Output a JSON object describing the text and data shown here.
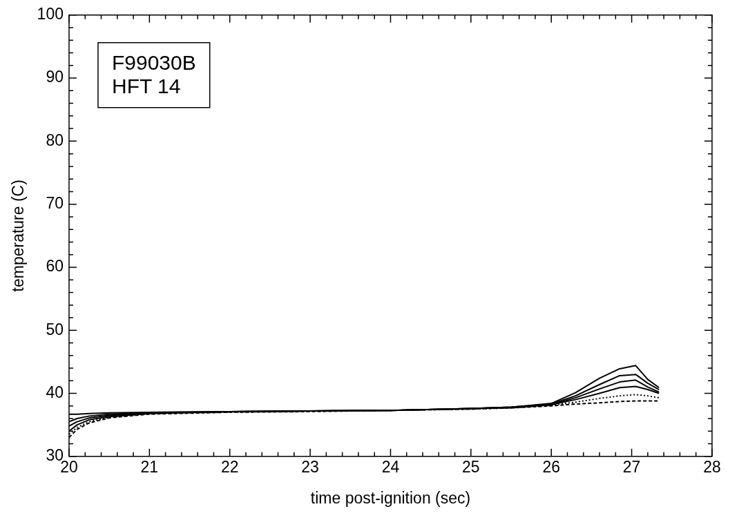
{
  "chart_data": {
    "type": "line",
    "xlabel": "time post-ignition (sec)",
    "ylabel": "temperature (C)",
    "annotations": [
      "F99030B",
      "HFT 14"
    ],
    "x": [
      20,
      20.1,
      20.25,
      20.5,
      21,
      22,
      23,
      24,
      25,
      25.5,
      26,
      26.3,
      26.6,
      26.85,
      27.05,
      27.2,
      27.34
    ],
    "series": [
      {
        "color": "#000000",
        "line_style": "solid",
        "values": [
          36.7,
          36.7,
          36.8,
          36.9,
          37.0,
          37.1,
          37.2,
          37.3,
          37.6,
          37.8,
          38.4,
          40.1,
          42.4,
          43.9,
          44.4,
          42.2,
          40.9
        ]
      },
      {
        "color": "#000000",
        "line_style": "solid",
        "values": [
          35.5,
          36.0,
          36.4,
          36.7,
          36.9,
          37.1,
          37.2,
          37.3,
          37.6,
          37.8,
          38.3,
          39.6,
          41.4,
          42.8,
          43.0,
          41.6,
          40.6
        ]
      },
      {
        "color": "#000000",
        "line_style": "solid",
        "values": [
          34.8,
          35.5,
          36.1,
          36.5,
          36.9,
          37.1,
          37.2,
          37.3,
          37.6,
          37.8,
          38.2,
          39.3,
          40.7,
          41.8,
          42.1,
          41.0,
          40.2
        ]
      },
      {
        "color": "#000000",
        "line_style": "solid",
        "values": [
          34.0,
          35.0,
          35.8,
          36.3,
          36.8,
          37.1,
          37.2,
          37.3,
          37.6,
          37.7,
          38.2,
          39.0,
          40.0,
          40.9,
          41.1,
          40.6,
          40.0
        ]
      },
      {
        "color": "#000000",
        "line_style": "dotted",
        "values": [
          33.5,
          34.6,
          35.5,
          36.2,
          36.8,
          37.0,
          37.2,
          37.3,
          37.5,
          37.7,
          38.1,
          38.6,
          39.2,
          39.6,
          39.8,
          39.6,
          39.3
        ]
      },
      {
        "color": "#000000",
        "line_style": "dashed",
        "values": [
          33.0,
          34.3,
          35.3,
          36.1,
          36.7,
          37.0,
          37.1,
          37.3,
          37.5,
          37.7,
          38.0,
          38.3,
          38.5,
          38.7,
          38.8,
          38.8,
          38.8
        ]
      }
    ],
    "xlim": [
      20,
      28
    ],
    "xticks": [
      20,
      {
        "value": 20.2,
        "label": null
      },
      {
        "value": 20.4,
        "label": null
      },
      {
        "value": 20.6,
        "label": null
      },
      {
        "value": 20.8,
        "label": null
      },
      21,
      {
        "value": 21.2,
        "label": null
      },
      {
        "value": 21.4,
        "label": null
      },
      {
        "value": 21.6,
        "label": null
      },
      {
        "value": 21.8,
        "label": null
      },
      22,
      {
        "value": 22.2,
        "label": null
      },
      {
        "value": 22.4,
        "label": null
      },
      {
        "value": 22.6,
        "label": null
      },
      {
        "value": 22.8,
        "label": null
      },
      23,
      {
        "value": 23.2,
        "label": null
      },
      {
        "value": 23.4,
        "label": null
      },
      {
        "value": 23.6,
        "label": null
      },
      {
        "value": 23.8,
        "label": null
      },
      24,
      {
        "value": 24.2,
        "label": null
      },
      {
        "value": 24.4,
        "label": null
      },
      {
        "value": 24.6,
        "label": null
      },
      {
        "value": 24.8,
        "label": null
      },
      25,
      {
        "value": 25.2,
        "label": null
      },
      {
        "value": 25.4,
        "label": null
      },
      {
        "value": 25.6,
        "label": null
      },
      {
        "value": 25.8,
        "label": null
      },
      26,
      {
        "value": 26.2,
        "label": null
      },
      {
        "value": 26.4,
        "label": null
      },
      {
        "value": 26.6,
        "label": null
      },
      {
        "value": 26.8,
        "label": null
      },
      27,
      {
        "value": 27.2,
        "label": null
      },
      {
        "value": 27.4,
        "label": null
      },
      {
        "value": 27.6,
        "label": null
      },
      {
        "value": 27.8,
        "label": null
      },
      28
    ],
    "ylim": [
      30,
      100
    ],
    "yticks": [
      30,
      {
        "value": 32,
        "label": null
      },
      {
        "value": 34,
        "label": null
      },
      {
        "value": 36,
        "label": null
      },
      {
        "value": 38,
        "label": null
      },
      40,
      {
        "value": 42,
        "label": null
      },
      {
        "value": 44,
        "label": null
      },
      {
        "value": 46,
        "label": null
      },
      {
        "value": 48,
        "label": null
      },
      50,
      {
        "value": 52,
        "label": null
      },
      {
        "value": 54,
        "label": null
      },
      {
        "value": 56,
        "label": null
      },
      {
        "value": 58,
        "label": null
      },
      60,
      {
        "value": 62,
        "label": null
      },
      {
        "value": 64,
        "label": null
      },
      {
        "value": 66,
        "label": null
      },
      {
        "value": 68,
        "label": null
      },
      70,
      {
        "value": 72,
        "label": null
      },
      {
        "value": 74,
        "label": null
      },
      {
        "value": 76,
        "label": null
      },
      {
        "value": 78,
        "label": null
      },
      80,
      {
        "value": 82,
        "label": null
      },
      {
        "value": 84,
        "label": null
      },
      {
        "value": 86,
        "label": null
      },
      {
        "value": 88,
        "label": null
      },
      90,
      {
        "value": 92,
        "label": null
      },
      {
        "value": 94,
        "label": null
      },
      {
        "value": 96,
        "label": null
      },
      {
        "value": 98,
        "label": null
      },
      100
    ],
    "grid": false,
    "legend": false,
    "marker": "none"
  }
}
